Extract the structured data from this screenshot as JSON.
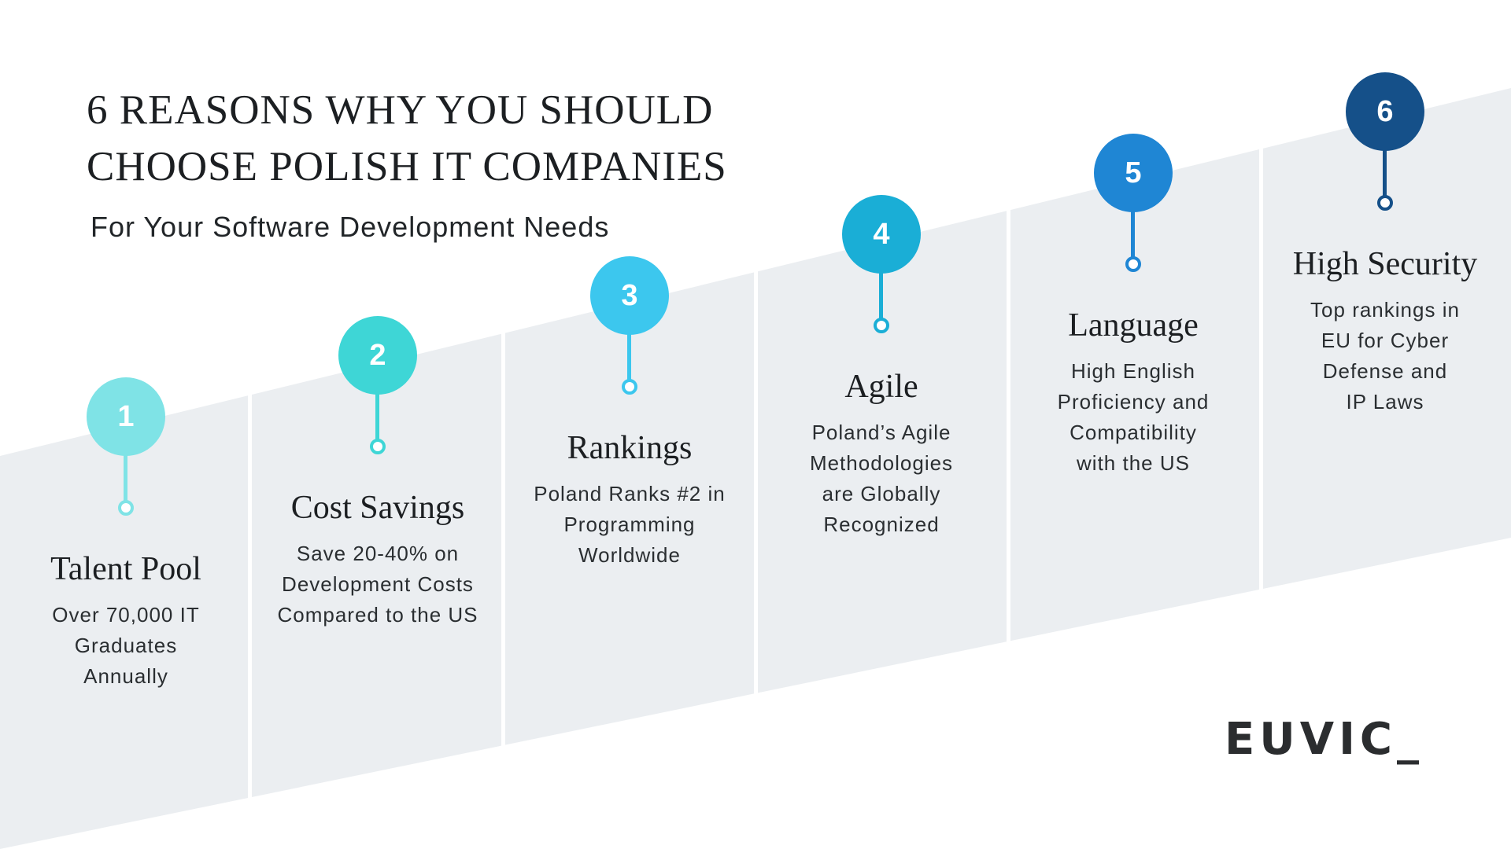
{
  "header": {
    "title_lines": [
      "6 REASONS WHY YOU SHOULD",
      "CHOOSE POLISH IT COMPANIES"
    ],
    "subtitle": "For Your Software Development Needs"
  },
  "steps": [
    {
      "number": "1",
      "title": "Talent Pool",
      "lines": [
        "Over 70,000 IT",
        "Graduates",
        "Annually"
      ],
      "color": "#7fe3e6"
    },
    {
      "number": "2",
      "title": "Cost Savings",
      "lines": [
        "Save 20-40% on",
        "Development Costs",
        "Compared to the US"
      ],
      "color": "#3ed6d6"
    },
    {
      "number": "3",
      "title": "Rankings",
      "lines": [
        "Poland Ranks #2 in",
        "Programming",
        "Worldwide"
      ],
      "color": "#3cc7ee"
    },
    {
      "number": "4",
      "title": "Agile",
      "lines": [
        "Poland’s Agile",
        "Methodologies",
        "are Globally",
        "Recognized"
      ],
      "color": "#1aaed6"
    },
    {
      "number": "5",
      "title": "Language",
      "lines": [
        "High English",
        "Proficiency and",
        "Compatibility",
        "with the US"
      ],
      "color": "#1f86d4"
    },
    {
      "number": "6",
      "title": "High Security",
      "lines": [
        "Top rankings in",
        "EU for Cyber",
        "Defense and",
        "IP Laws"
      ],
      "color": "#155089"
    }
  ],
  "logo": {
    "text": "EUVIC_"
  }
}
